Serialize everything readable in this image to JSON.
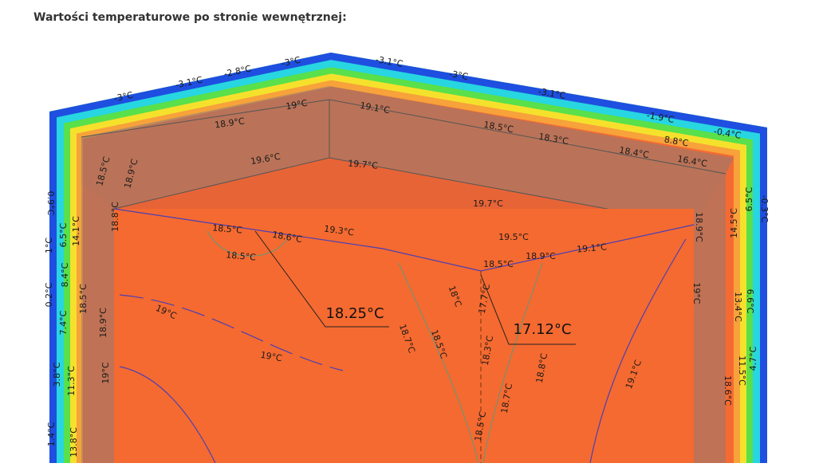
{
  "heading": "Wartości temperaturowe po stronie wewnętrznej:",
  "figure": {
    "callouts": [
      "18.25°C",
      "17.12°C"
    ],
    "labels": [
      "-3°C",
      "-3.1°C",
      "-2.8°C",
      "-3°C",
      "-3.1°C",
      "-3°C",
      "-3.1°C",
      "-1.9°C",
      "-0.4°C",
      "19°C",
      "19.1°C",
      "18.9°C",
      "18.5°C",
      "18.3°C",
      "18.4°C",
      "8.8°C",
      "16.4°C",
      "19.6°C",
      "19.7°C",
      "19.7°C",
      "19.3°C",
      "19.5°C",
      "18.5°C",
      "18.6°C",
      "18.5°C",
      "18.5°C",
      "18.9°C",
      "19.1°C",
      "19°C",
      "19°C",
      "18.7°C",
      "18.5°C",
      "18°C",
      "17.7°C",
      "18.3°C",
      "18.8°C",
      "18.7°C",
      "19.1°C",
      "18.5°C",
      "0.9°C",
      "18.5°C",
      "18.9°C",
      "18.8°C",
      "6.5°C",
      "14.1°C",
      "1°C",
      "8.4°C",
      "0.2°C",
      "18.5°C",
      "18.9°C",
      "7.4°C",
      "19°C",
      "3.8°C",
      "11.3°C",
      "1.4°C",
      "13.8°C",
      "6.5°C",
      "14.5°C",
      "18.9°C",
      "19°C",
      "6.6°C",
      "13.4°C",
      "4.7°C",
      "11.5°C",
      "18.6°C",
      "-0.3°C"
    ]
  }
}
